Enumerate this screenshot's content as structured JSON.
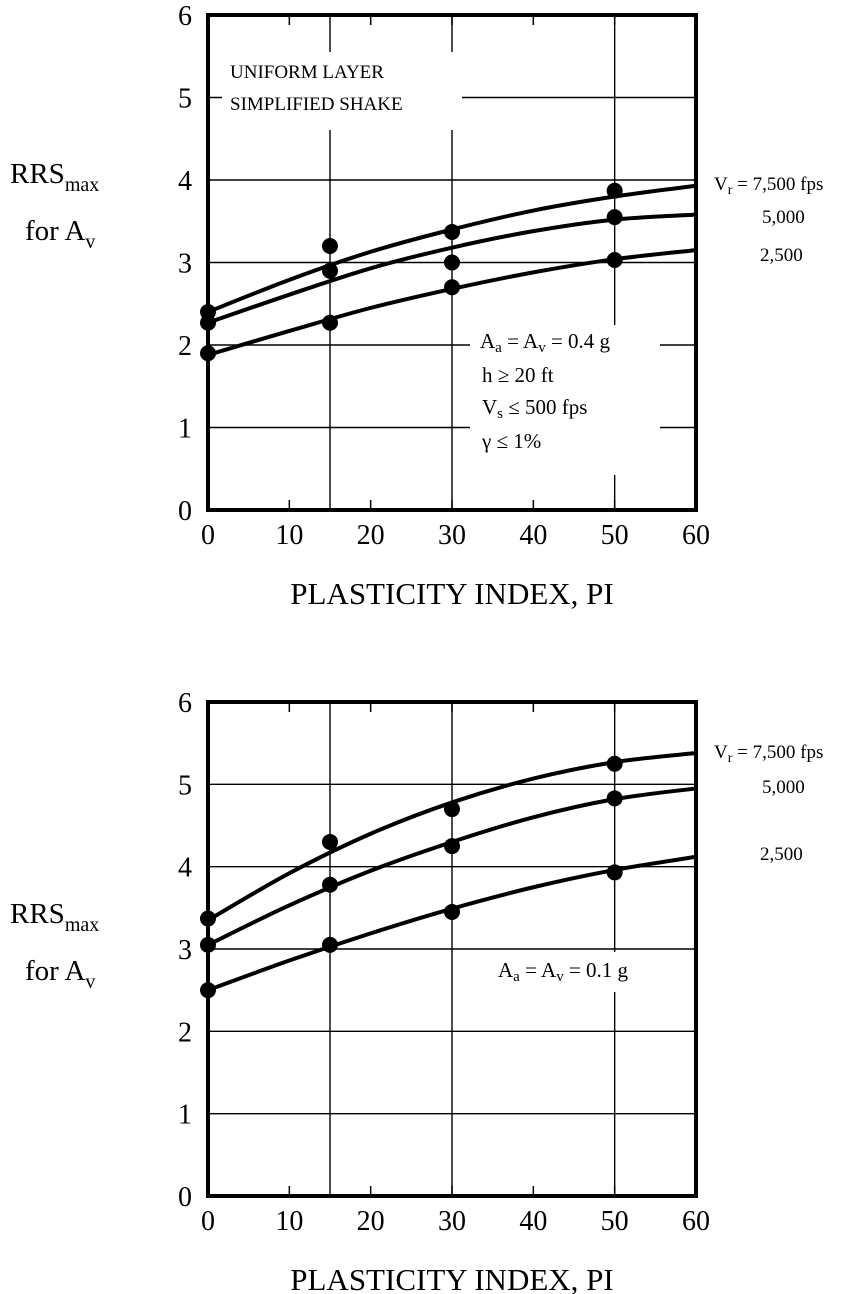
{
  "figure": {
    "title": "",
    "ylabel_main": "RRS",
    "ylabel_sub": "max",
    "ylabel_line2_main": "for A",
    "ylabel_line2_sub": "v",
    "xlabel": "PLASTICITY INDEX, PI"
  },
  "chart_data": [
    {
      "type": "line",
      "xlabel": "PLASTICITY INDEX, PI",
      "ylabel": "RRSmax for Av",
      "xlim": [
        0,
        60
      ],
      "ylim": [
        0,
        6
      ],
      "xticks": [
        "0",
        "10",
        "20",
        "30",
        "40",
        "50",
        "60"
      ],
      "yticks": [
        "0",
        "1",
        "2",
        "3",
        "4",
        "5",
        "6"
      ],
      "grid": true,
      "annotations": {
        "top_left": [
          "UNIFORM LAYER",
          "SIMPLIFIED SHAKE"
        ],
        "conditions": [
          "Aa = Av = 0.4 g",
          "h ≥ 20 ft",
          "Vs ≤ 500 fps",
          "γ ≤ 1%"
        ]
      },
      "curve_labels": [
        "Vr = 7,500 fps",
        "5,000",
        "2,500"
      ],
      "series": [
        {
          "name": "Vr = 7,500 fps",
          "points": [
            [
              0,
              2.4
            ],
            [
              15,
              3.2
            ],
            [
              30,
              3.37
            ],
            [
              50,
              3.87
            ]
          ],
          "fit": [
            [
              0,
              2.4
            ],
            [
              10,
              2.79
            ],
            [
              20,
              3.13
            ],
            [
              30,
              3.4
            ],
            [
              40,
              3.63
            ],
            [
              50,
              3.8
            ],
            [
              60,
              3.93
            ]
          ]
        },
        {
          "name": "5,000",
          "points": [
            [
              0,
              2.27
            ],
            [
              15,
              2.9
            ],
            [
              30,
              3.0
            ],
            [
              50,
              3.55
            ]
          ],
          "fit": [
            [
              0,
              2.27
            ],
            [
              10,
              2.61
            ],
            [
              20,
              2.93
            ],
            [
              30,
              3.18
            ],
            [
              40,
              3.38
            ],
            [
              50,
              3.52
            ],
            [
              60,
              3.58
            ]
          ]
        },
        {
          "name": "2,500",
          "points": [
            [
              0,
              1.9
            ],
            [
              15,
              2.27
            ],
            [
              30,
              2.7
            ],
            [
              50,
              3.03
            ]
          ],
          "fit": [
            [
              0,
              1.88
            ],
            [
              10,
              2.17
            ],
            [
              20,
              2.45
            ],
            [
              30,
              2.68
            ],
            [
              40,
              2.88
            ],
            [
              50,
              3.04
            ],
            [
              60,
              3.15
            ]
          ]
        }
      ]
    },
    {
      "type": "line",
      "xlabel": "PLASTICITY INDEX, PI",
      "ylabel": "RRSmax for Av",
      "xlim": [
        0,
        60
      ],
      "ylim": [
        0,
        6
      ],
      "xticks": [
        "0",
        "10",
        "20",
        "30",
        "40",
        "50",
        "60"
      ],
      "yticks": [
        "0",
        "1",
        "2",
        "3",
        "4",
        "5",
        "6"
      ],
      "grid": true,
      "annotations": {
        "conditions": [
          "Aa = Av = 0.1 g"
        ]
      },
      "curve_labels": [
        "Vr = 7,500 fps",
        "5,000",
        "2,500"
      ],
      "series": [
        {
          "name": "Vr = 7,500 fps",
          "points": [
            [
              0,
              3.37
            ],
            [
              15,
              4.3
            ],
            [
              30,
              4.7
            ],
            [
              50,
              5.25
            ]
          ],
          "fit": [
            [
              0,
              3.35
            ],
            [
              10,
              3.92
            ],
            [
              20,
              4.4
            ],
            [
              30,
              4.78
            ],
            [
              40,
              5.07
            ],
            [
              50,
              5.27
            ],
            [
              60,
              5.38
            ]
          ]
        },
        {
          "name": "5,000",
          "points": [
            [
              0,
              3.05
            ],
            [
              15,
              3.78
            ],
            [
              30,
              4.25
            ],
            [
              50,
              4.83
            ]
          ],
          "fit": [
            [
              0,
              3.05
            ],
            [
              10,
              3.53
            ],
            [
              20,
              3.95
            ],
            [
              30,
              4.3
            ],
            [
              40,
              4.6
            ],
            [
              50,
              4.82
            ],
            [
              60,
              4.95
            ]
          ]
        },
        {
          "name": "2,500",
          "points": [
            [
              0,
              2.5
            ],
            [
              15,
              3.05
            ],
            [
              30,
              3.45
            ],
            [
              50,
              3.93
            ]
          ],
          "fit": [
            [
              0,
              2.5
            ],
            [
              10,
              2.86
            ],
            [
              20,
              3.19
            ],
            [
              30,
              3.49
            ],
            [
              40,
              3.75
            ],
            [
              50,
              3.96
            ],
            [
              60,
              4.12
            ]
          ]
        }
      ]
    }
  ]
}
